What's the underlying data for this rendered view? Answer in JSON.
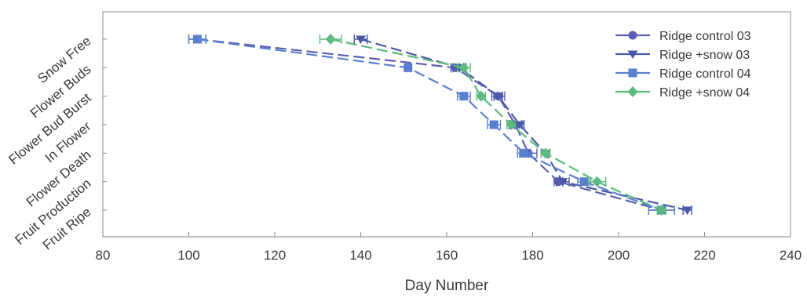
{
  "chart_data": {
    "type": "line",
    "title": "",
    "xlabel": "Day Number",
    "ylabel": "",
    "xlim": [
      80,
      240
    ],
    "x_ticks": [
      80,
      100,
      120,
      140,
      160,
      180,
      200,
      220,
      240
    ],
    "categories": [
      "Snow Free",
      "Flower Buds",
      "Flower Bud Burst",
      "In Flower",
      "Flower Death",
      "Fruit Production",
      "Fruit Ripe"
    ],
    "grid": false,
    "legend_position": "top-right",
    "series": [
      {
        "name": "Ridge control 03",
        "marker": "circle",
        "color": "#5b5fb3",
        "dash": true,
        "x": [
          102,
          162,
          172,
          176,
          179,
          186,
          210
        ],
        "x_err": [
          2,
          1,
          1.5,
          1.5,
          2,
          1,
          3
        ]
      },
      {
        "name": "Ridge +snow 03",
        "marker": "triangle-down",
        "color": "#4b5aa8",
        "dash": true,
        "x": [
          140,
          163,
          172,
          177,
          183,
          187,
          216
        ],
        "x_err": [
          1.5,
          1.5,
          1,
          1,
          1,
          1.5,
          1
        ]
      },
      {
        "name": "Ridge control 04",
        "marker": "square",
        "color": "#5b7fcf",
        "dash": true,
        "x": [
          102,
          151,
          164,
          171,
          178,
          192,
          210
        ],
        "x_err": [
          2,
          0.5,
          1.5,
          1.5,
          1.5,
          1.5,
          3
        ]
      },
      {
        "name": "Ridge +snow 04",
        "marker": "diamond",
        "color": "#5dbb7e",
        "dash": true,
        "x": [
          133,
          164,
          168,
          175,
          183,
          195,
          210
        ],
        "x_err": [
          2.5,
          1.5,
          1,
          1,
          1,
          2,
          1
        ]
      }
    ]
  }
}
